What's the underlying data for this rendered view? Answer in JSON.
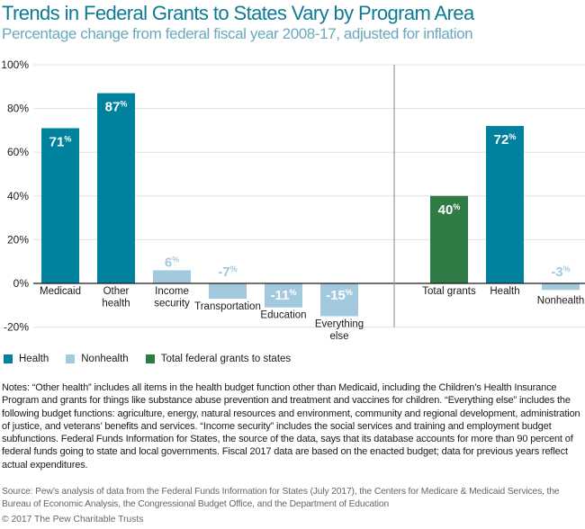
{
  "header": {
    "title": "Trends in Federal Grants to States Vary by Program Area",
    "subtitle": "Percentage change from federal fiscal year 2008-17, adjusted for inflation"
  },
  "colors": {
    "health": "#00829f",
    "nonhealth": "#a3c9de",
    "total": "#2e7b45",
    "gridline": "#e0e0e0",
    "axis": "#1a1a1a",
    "divider": "#999999"
  },
  "chart_data": {
    "type": "bar",
    "title": "Trends in Federal Grants to States Vary by Program Area",
    "subtitle": "Percentage change from federal fiscal year 2008-17, adjusted for inflation",
    "xlabel": "",
    "ylabel": "",
    "ylim": [
      -20,
      100
    ],
    "yticks": [
      100,
      80,
      60,
      40,
      20,
      0,
      -20
    ],
    "ytick_labels": [
      "100%",
      "80%",
      "60%",
      "40%",
      "20%",
      "0%",
      "-20%"
    ],
    "grid": true,
    "panels": [
      {
        "name": "by-program",
        "bars": [
          {
            "category": "Medicaid",
            "label_lines": [
              "Medicaid"
            ],
            "value": 71,
            "series": "Health",
            "label": "71",
            "label_inside": true
          },
          {
            "category": "Other health",
            "label_lines": [
              "Other",
              "health"
            ],
            "value": 87,
            "series": "Health",
            "label": "87",
            "label_inside": true
          },
          {
            "category": "Income security",
            "label_lines": [
              "Income",
              "security"
            ],
            "value": 6,
            "series": "Nonhealth",
            "label": "6",
            "label_inside": false
          },
          {
            "category": "Transportation",
            "label_lines": [
              "Transportation"
            ],
            "value": -7,
            "series": "Nonhealth",
            "label": "-7",
            "label_inside": false
          },
          {
            "category": "Education",
            "label_lines": [
              "Education"
            ],
            "value": -11,
            "series": "Nonhealth",
            "label": "-11",
            "label_inside": true
          },
          {
            "category": "Everything else",
            "label_lines": [
              "Everything",
              "else"
            ],
            "value": -15,
            "series": "Nonhealth",
            "label": "-15",
            "label_inside": true
          }
        ]
      },
      {
        "name": "totals",
        "bars": [
          {
            "category": "Total grants",
            "label_lines": [
              "Total grants"
            ],
            "value": 40,
            "series": "Total federal grants to states",
            "label": "40",
            "label_inside": true
          },
          {
            "category": "Health",
            "label_lines": [
              "Health"
            ],
            "value": 72,
            "series": "Health",
            "label": "72",
            "label_inside": true
          },
          {
            "category": "Nonhealth",
            "label_lines": [
              "Nonhealth"
            ],
            "value": -3,
            "series": "Nonhealth",
            "label": "-3",
            "label_inside": false
          }
        ]
      }
    ],
    "value_suffix": "%",
    "legend": {
      "position": "bottom-left",
      "entries": [
        {
          "name": "Health",
          "color": "#00829f"
        },
        {
          "name": "Nonhealth",
          "color": "#a3c9de"
        },
        {
          "name": "Total federal grants to states",
          "color": "#2e7b45"
        }
      ]
    }
  },
  "notes": "Notes: “Other health” includes all items in the health budget function other than Medicaid, including the Children’s Health Insurance Program and grants for things like substance abuse prevention and treatment and vaccines for children. “Everything else” includes the following budget functions: agriculture, energy, natural resources and environment, community and regional development, administration of justice, and veterans’ benefits and services. “Income security” includes the social services and training and employment budget subfunctions. Federal Funds Information for States, the source of the data, says that its database accounts for more than 90 percent of federal funds going to state and local governments. Fiscal 2017 data are based on the enacted budget; data for previous years reflect actual expenditures.",
  "source": "Source: Pew’s analysis of data from the Federal Funds Information for States (July 2017), the Centers for Medicare & Medicaid Services, the Bureau of Economic Analysis, the Congressional Budget Office, and the Department of Education",
  "copyright": "© 2017 The Pew Charitable Trusts"
}
